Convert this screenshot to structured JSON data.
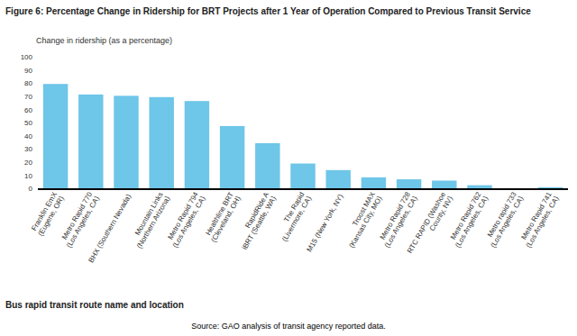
{
  "chart_data": {
    "type": "bar",
    "title": "Figure 6: Percentage Change in Ridership for BRT Projects after 1 Year of Operation Compared to Previous Transit Service",
    "ylabel": "Change in ridership (as a percentage)",
    "xlabel": "Bus rapid transit route name and location",
    "source": "Source: GAO analysis of transit agency reported data.",
    "categories": [
      "Franklin EmX\n(Eugene, OR)",
      "Metro Rapid 770\n(Los Angeles, CA)",
      "BHX (Southern Nevada)",
      "Mountain Links\n(Northern Arizona)",
      "Metro Rapid 794\n(Los Angeles, CA)",
      "Healthline BRT\n(Cleveland, OH)",
      "RapidRide A\niBRT (Seattle, WA)",
      "The Rapid\n(Livermore, CA)",
      "M15 (New York, NY)",
      "Troost MAX\n(Kansas City, MO)",
      "Metro Rapid 728\n(Los Angeles, CA)",
      "RTC RAPID (Washoe\nCounty, NV)",
      "Metro Rapid 762\n(Los Angeles, CA)",
      "Metro rapid 733\n(Los Angeles, CA)",
      "Metro Rapid 741\n(Los Angeles, CA)"
    ],
    "values": [
      80,
      72,
      71,
      70,
      67,
      48,
      35,
      19.5,
      14.5,
      9,
      7.5,
      6.5,
      3,
      0.5,
      1.5
    ],
    "color": "#6ec6e8",
    "ylim": [
      0,
      100
    ],
    "yticks": [
      0,
      10,
      20,
      30,
      40,
      50,
      60,
      70,
      80,
      90,
      100
    ],
    "grid": false
  }
}
